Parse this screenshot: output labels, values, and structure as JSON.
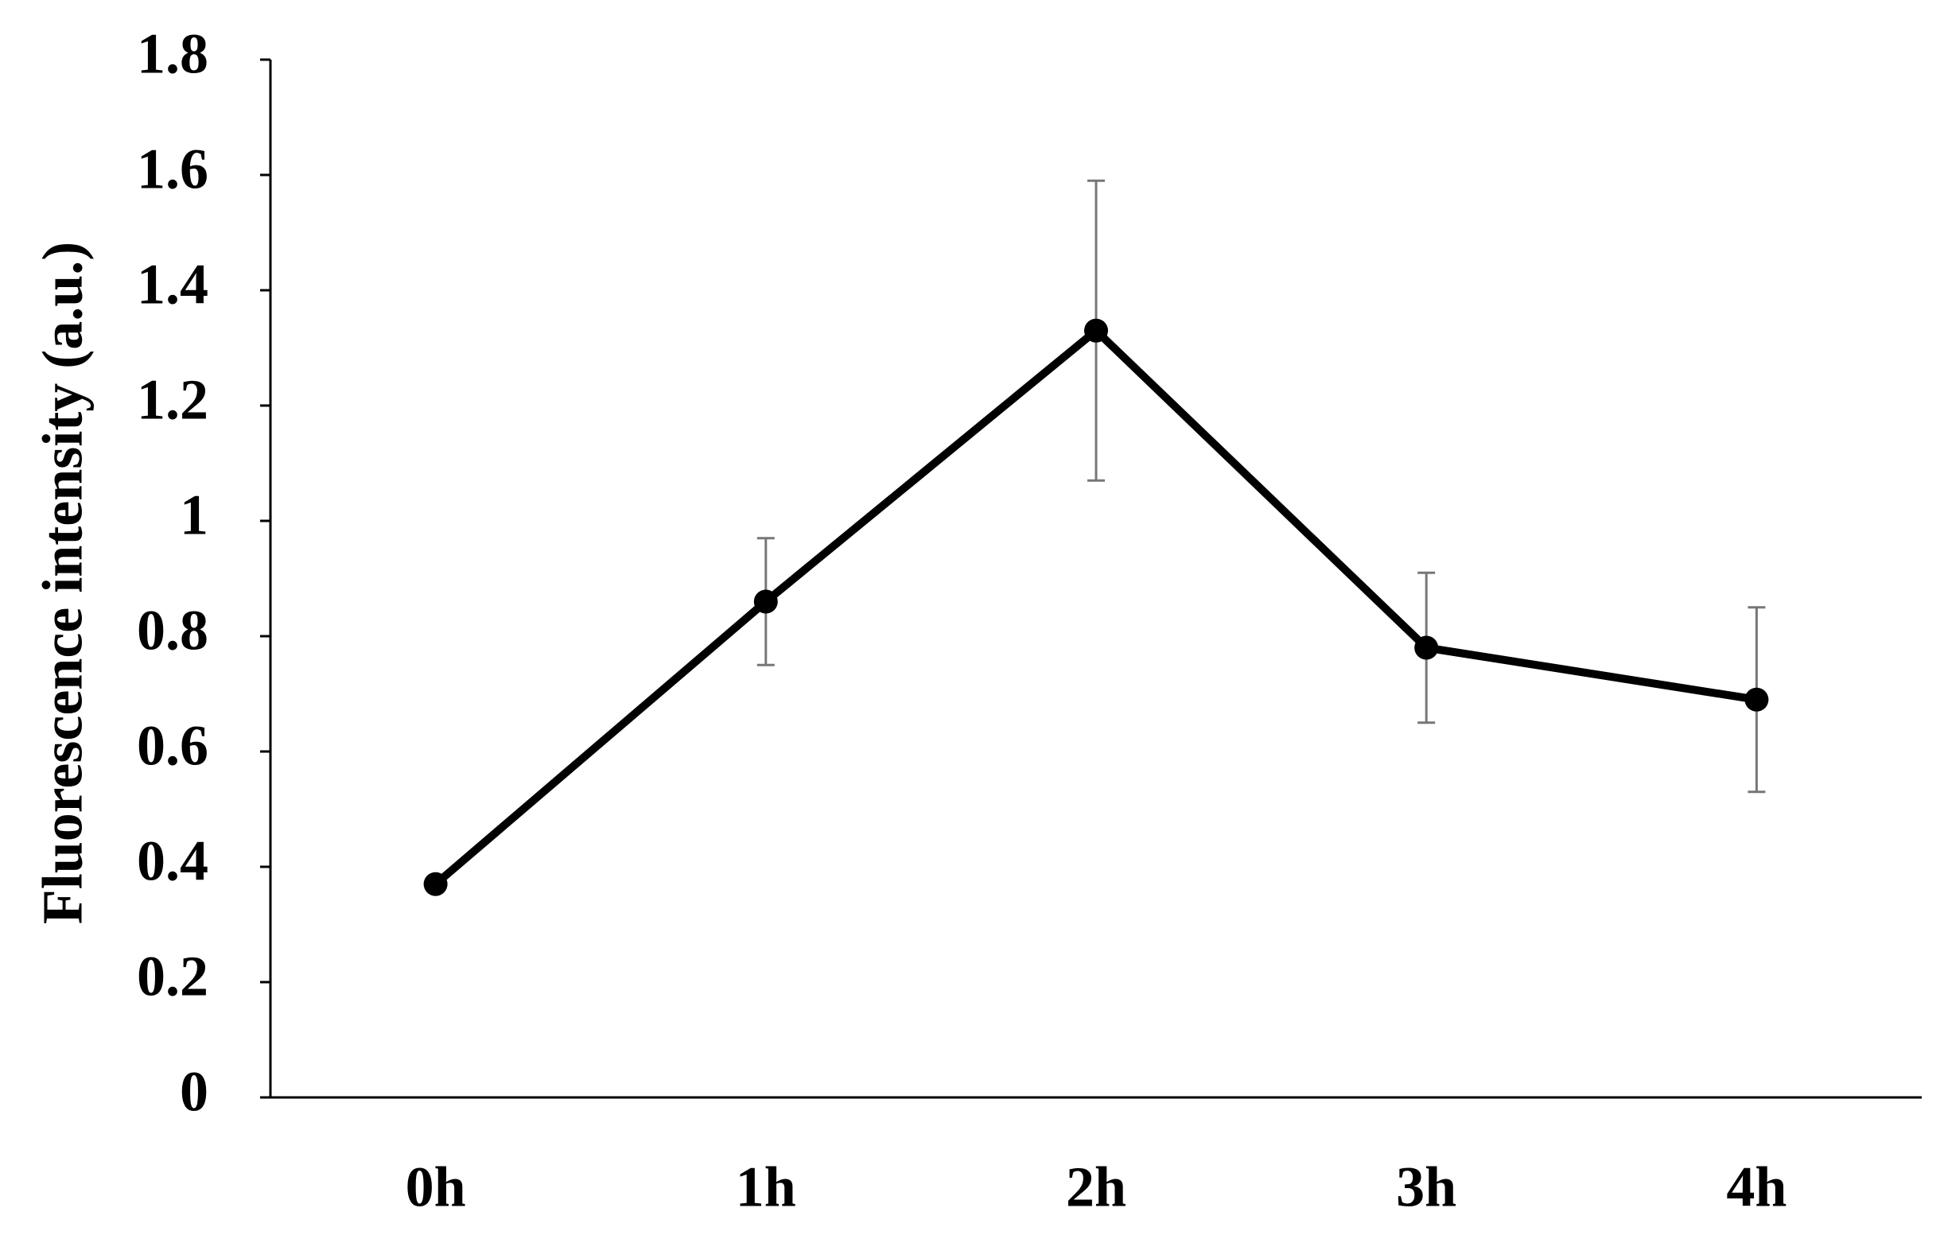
{
  "chart_data": {
    "type": "line",
    "y_label": "Fluorescence intensity (a.u.)",
    "categories": [
      "0h",
      "1h",
      "2h",
      "3h",
      "4h"
    ],
    "values": [
      0.37,
      0.86,
      1.33,
      0.78,
      0.69
    ],
    "errors": [
      0.01,
      0.11,
      0.26,
      0.13,
      0.16
    ],
    "color": "#000000",
    "error_color": "#777777",
    "ylim": [
      0,
      1.8
    ],
    "yticks": [
      0,
      0.2,
      0.4,
      0.6,
      0.8,
      1,
      1.2,
      1.4,
      1.6,
      1.8
    ],
    "grid": false
  }
}
